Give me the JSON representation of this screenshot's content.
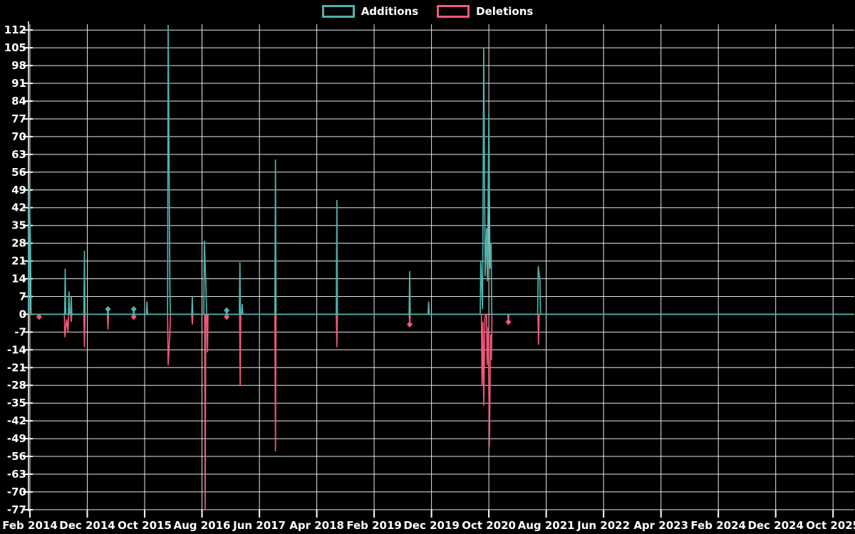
{
  "colors": {
    "background": "#000000",
    "grid": "#E8E8E8",
    "axis": "#FFFFFF",
    "text": "#FFFFFF",
    "additions": "#4DB3AE",
    "deletions": "#F0587A"
  },
  "chart_data": {
    "type": "line",
    "title": "",
    "xlabel": "",
    "ylabel": "",
    "grid": true,
    "legend_position": "top-center",
    "legend": [
      {
        "name": "Additions",
        "color": "#4DB3AE"
      },
      {
        "name": "Deletions",
        "color": "#F0587A"
      }
    ],
    "y_axis": {
      "ticks": [
        112,
        105,
        98,
        91,
        84,
        77,
        70,
        63,
        56,
        49,
        42,
        35,
        28,
        21,
        14,
        7,
        0,
        -7,
        -14,
        -21,
        -28,
        -35,
        -42,
        -49,
        -56,
        -63,
        -70,
        -77
      ],
      "ylim": [
        -77.6,
        114.3
      ]
    },
    "x_axis": {
      "tick_labels": [
        "Feb 2014",
        "Dec 2014",
        "Oct 2015",
        "Aug 2016",
        "Jun 2017",
        "Apr 2018",
        "Feb 2019",
        "Dec 2019",
        "Oct 2020",
        "Aug 2021",
        "Jun 2022",
        "Apr 2023",
        "Feb 2024",
        "Dec 2024",
        "Oct 2025"
      ],
      "tick_interval_months": 10,
      "xlim_months": [
        -0.25,
        143.7
      ]
    },
    "series": [
      {
        "name": "Deletions",
        "color": "#F0587A",
        "unit": "lines",
        "baseline": 0,
        "spikes_month_value": [
          [
            1.6,
            -1
          ],
          [
            6.1,
            -9
          ],
          [
            6.4,
            -2
          ],
          [
            6.65,
            -7
          ],
          [
            7.2,
            -3
          ],
          [
            9.5,
            -13
          ],
          [
            13.6,
            -6
          ],
          [
            18.1,
            -1
          ],
          [
            24.1,
            -20
          ],
          [
            24.4,
            -7
          ],
          [
            28.3,
            -4
          ],
          [
            30.55,
            -77
          ],
          [
            30.95,
            -15
          ],
          [
            34.3,
            -1
          ],
          [
            36.65,
            -28
          ],
          [
            42.8,
            -54
          ],
          [
            53.5,
            -13
          ],
          [
            66.2,
            -4
          ],
          [
            78.8,
            -28
          ],
          [
            78.95,
            -3
          ],
          [
            79.1,
            -36
          ],
          [
            79.3,
            -2
          ],
          [
            79.7,
            -20
          ],
          [
            79.9,
            -5
          ],
          [
            80.1,
            -52
          ],
          [
            80.3,
            -8
          ],
          [
            80.45,
            -18
          ],
          [
            83.4,
            -3
          ],
          [
            88.65,
            -12
          ]
        ],
        "markers_month_value": [
          [
            1.6,
            -1
          ],
          [
            18.1,
            -1
          ],
          [
            34.3,
            -1
          ],
          [
            66.2,
            -4
          ],
          [
            83.4,
            -3
          ]
        ]
      },
      {
        "name": "Additions",
        "color": "#4DB3AE",
        "unit": "lines",
        "baseline": 0,
        "spikes_month_value": [
          [
            -0.15,
            51
          ],
          [
            0.1,
            29
          ],
          [
            6.15,
            18
          ],
          [
            6.8,
            9
          ],
          [
            7.2,
            7
          ],
          [
            9.5,
            25
          ],
          [
            13.6,
            2
          ],
          [
            18.1,
            2
          ],
          [
            20.4,
            5
          ],
          [
            24.1,
            114
          ],
          [
            24.4,
            9
          ],
          [
            28.3,
            7
          ],
          [
            30.4,
            29
          ],
          [
            30.7,
            9
          ],
          [
            34.3,
            1.5
          ],
          [
            36.6,
            20.5
          ],
          [
            37.0,
            4
          ],
          [
            42.8,
            61
          ],
          [
            53.5,
            45
          ],
          [
            66.2,
            17
          ],
          [
            69.5,
            5
          ],
          [
            78.6,
            21
          ],
          [
            78.9,
            2
          ],
          [
            79.1,
            105
          ],
          [
            79.35,
            15
          ],
          [
            79.6,
            34
          ],
          [
            79.75,
            13
          ],
          [
            80.0,
            79
          ],
          [
            80.2,
            18
          ],
          [
            80.4,
            28
          ],
          [
            88.6,
            19
          ],
          [
            88.9,
            13
          ]
        ],
        "markers_month_value": [
          [
            13.6,
            2
          ],
          [
            18.1,
            2
          ],
          [
            34.3,
            1.5
          ]
        ]
      }
    ]
  }
}
